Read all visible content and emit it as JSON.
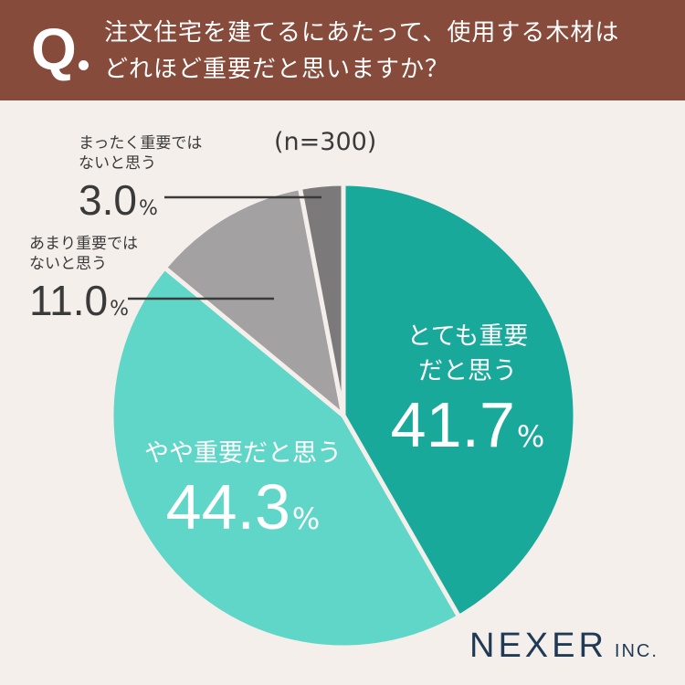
{
  "header": {
    "q_label": "Q",
    "question_lines": [
      "注文住宅を建てるにあたって、使用する木材は",
      "どれほど重要だと思いますか？"
    ]
  },
  "sample_size": "(n=300)",
  "percent_unit": "%",
  "colors": {
    "header_bg": "#874b3b",
    "background": "#f5efec",
    "very_important": "#19a99a",
    "somewhat_important": "#5fd6c8",
    "not_very_important": "#a3a1a2",
    "not_at_all_important": "#7b797a",
    "brand": "#1e3a55"
  },
  "chart_data": {
    "type": "pie",
    "title": "注文住宅を建てるにあたって、使用する木材はどれほど重要だと思いますか？",
    "n": 300,
    "start_angle_deg": 0,
    "direction": "clockwise",
    "slices": [
      {
        "label": "とても重要だと思う",
        "label_lines": [
          "とても重要",
          "だと思う"
        ],
        "value": 41.7,
        "display": "41.7",
        "color": "#19a99a",
        "label_position": "inside"
      },
      {
        "label": "やや重要だと思う",
        "label_lines": [
          "やや重要だと思う"
        ],
        "value": 44.3,
        "display": "44.3",
        "color": "#5fd6c8",
        "label_position": "inside"
      },
      {
        "label": "あまり重要ではないと思う",
        "label_lines": [
          "あまり重要では",
          "ないと思う"
        ],
        "value": 11.0,
        "display": "11.0",
        "color": "#a3a1a2",
        "label_position": "outside"
      },
      {
        "label": "まったく重要ではないと思う",
        "label_lines": [
          "まったく重要では",
          "ないと思う"
        ],
        "value": 3.0,
        "display": "3.0",
        "color": "#7b797a",
        "label_position": "outside"
      }
    ]
  },
  "brand": {
    "name": "NEXER",
    "suffix": "INC."
  }
}
